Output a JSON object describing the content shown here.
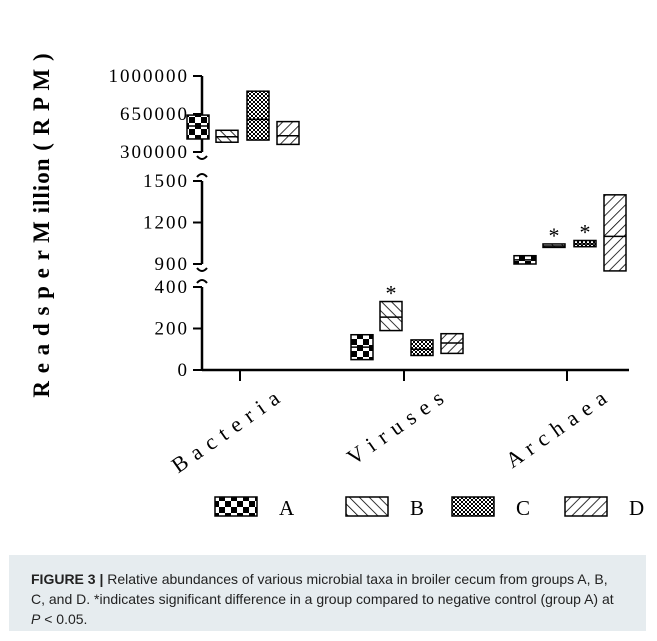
{
  "caption": {
    "label": "FIGURE 3 |",
    "text_1": " Relative abundances of various microbial taxa in broiler cecum from groups A, B, C, and D. *indicates significant difference in a group compared to negative control (group A) at ",
    "p_symbol": "P",
    "text_2": " < 0.05."
  },
  "chart_data": {
    "type": "box",
    "ylabel": "R e a d s  p e r  M illion  ( R P M )",
    "categories": [
      "B a c t e r i a",
      "V i r u s e s",
      "A r c h a e a"
    ],
    "groups": [
      "A",
      "B",
      "C",
      "D"
    ],
    "y_segments": [
      {
        "range": [
          0,
          400
        ],
        "ticks": [
          "400",
          "200",
          "0"
        ],
        "tick_values": [
          400,
          200,
          0
        ]
      },
      {
        "range": [
          900,
          1500
        ],
        "ticks": [
          "1500",
          "1200",
          "900"
        ],
        "tick_values": [
          1500,
          1200,
          900
        ]
      },
      {
        "range": [
          300000,
          1000000
        ],
        "ticks": [
          "1000000",
          "650000",
          "300000"
        ],
        "tick_values": [
          1000000,
          650000,
          300000
        ]
      }
    ],
    "series": [
      {
        "name": "A",
        "values": [
          {
            "category": "Bacteria",
            "low": 420000,
            "mid": 540000,
            "high": 640000,
            "sig": false
          },
          {
            "category": "Viruses",
            "low": 50,
            "mid": 110,
            "high": 170,
            "sig": false
          },
          {
            "category": "Archaea",
            "low": 900,
            "mid": 930,
            "high": 960,
            "sig": false
          }
        ]
      },
      {
        "name": "B",
        "values": [
          {
            "category": "Bacteria",
            "low": 390000,
            "mid": 440000,
            "high": 500000,
            "sig": false
          },
          {
            "category": "Viruses",
            "low": 190,
            "mid": 255,
            "high": 330,
            "sig": true
          },
          {
            "category": "Archaea",
            "low": 1020,
            "mid": 1030,
            "high": 1045,
            "sig": true
          }
        ]
      },
      {
        "name": "C",
        "values": [
          {
            "category": "Bacteria",
            "low": 410000,
            "mid": 600000,
            "high": 860000,
            "sig": false
          },
          {
            "category": "Viruses",
            "low": 70,
            "mid": 100,
            "high": 145,
            "sig": false
          },
          {
            "category": "Archaea",
            "low": 1025,
            "mid": 1045,
            "high": 1070,
            "sig": true
          }
        ]
      },
      {
        "name": "D",
        "values": [
          {
            "category": "Bacteria",
            "low": 370000,
            "mid": 450000,
            "high": 580000,
            "sig": false
          },
          {
            "category": "Viruses",
            "low": 80,
            "mid": 130,
            "high": 175,
            "sig": false
          },
          {
            "category": "Archaea",
            "low": 850,
            "mid": 1100,
            "high": 1400,
            "sig": false
          }
        ]
      }
    ],
    "significance_marker": "*",
    "legend": {
      "placement": "bottom",
      "entries": [
        "A",
        "B",
        "C",
        "D"
      ]
    }
  }
}
